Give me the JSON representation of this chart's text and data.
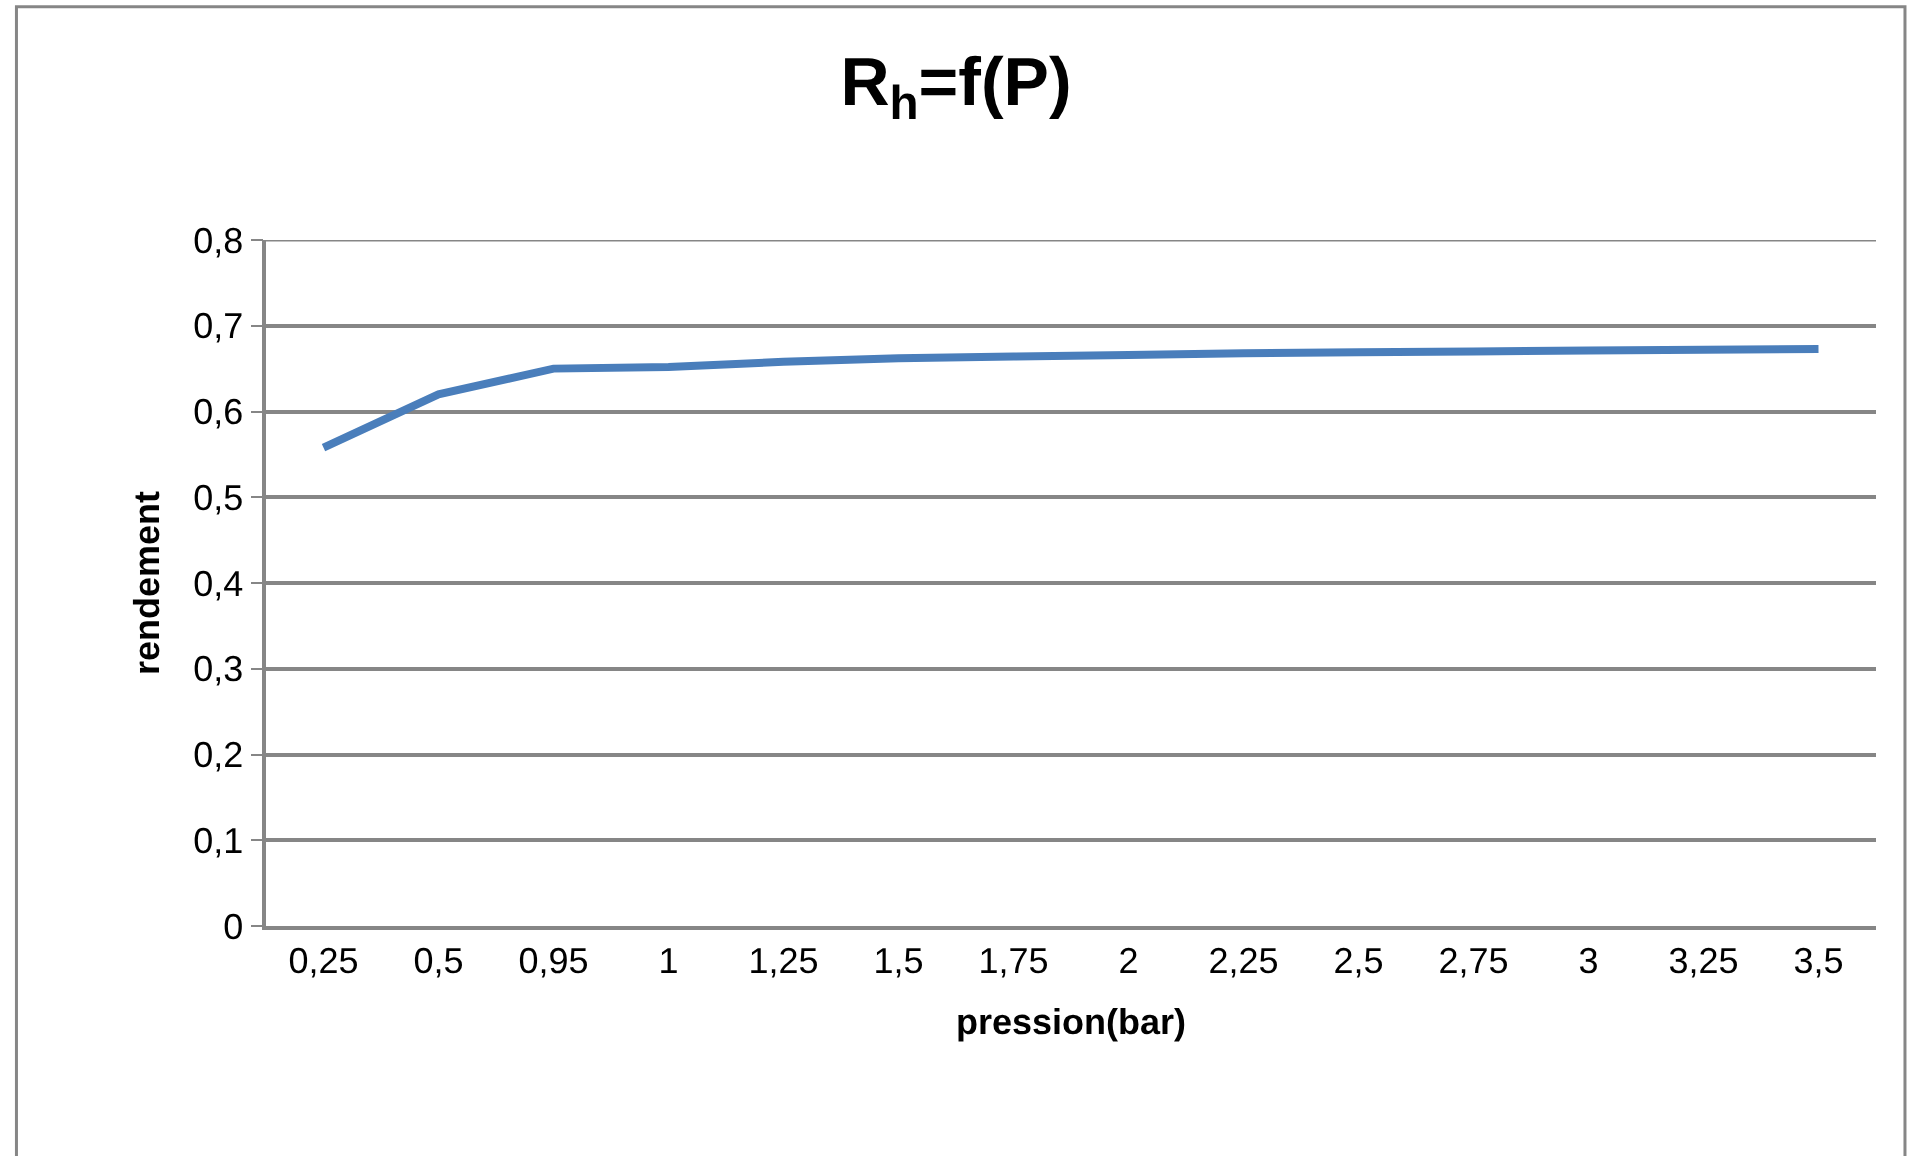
{
  "chart_data": {
    "type": "line",
    "title": "R$_{h}$=f(P)",
    "xlabel": "pression(bar)",
    "ylabel": "rendement",
    "categories": [
      "0,25",
      "0,5",
      "0,95",
      "1",
      "1,25",
      "1,5",
      "1,75",
      "2",
      "2,25",
      "2,5",
      "2,75",
      "3",
      "3,25",
      "3,5"
    ],
    "series": [
      {
        "color": "#4a7ebb",
        "values": [
          0.558,
          0.62,
          0.65,
          0.652,
          0.658,
          0.662,
          0.664,
          0.666,
          0.668,
          0.669,
          0.67,
          0.671,
          0.672,
          0.673
        ]
      }
    ],
    "ylim": [
      0,
      0.8
    ],
    "yticks": [
      {
        "value": 0,
        "label": "0"
      },
      {
        "value": 0.1,
        "label": "0,1"
      },
      {
        "value": 0.2,
        "label": "0,2"
      },
      {
        "value": 0.3,
        "label": "0,3"
      },
      {
        "value": 0.4,
        "label": "0,4"
      },
      {
        "value": 0.5,
        "label": "0,5"
      },
      {
        "value": 0.6,
        "label": "0,6"
      },
      {
        "value": 0.7,
        "label": "0,7"
      },
      {
        "value": 0.8,
        "label": "0,8"
      }
    ],
    "grid": "y",
    "marker": "none",
    "line_style": "solid"
  }
}
